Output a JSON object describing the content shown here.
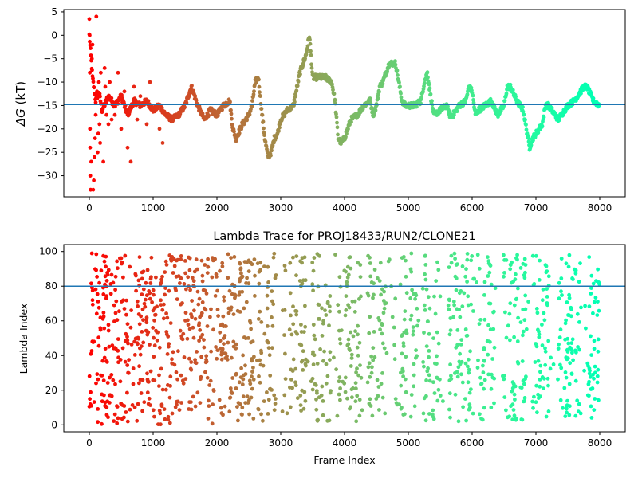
{
  "chart_data": [
    {
      "type": "scatter",
      "title": "",
      "xlabel": "",
      "ylabel": "ΔG (kT)",
      "ylabel_symbol": "ΔG",
      "ylabel_unit": " (kT)",
      "xlim": [
        -400,
        8400
      ],
      "ylim": [
        -34.5,
        5.5
      ],
      "xticks": [
        0,
        1000,
        2000,
        3000,
        4000,
        5000,
        6000,
        7000,
        8000
      ],
      "yticks": [
        5,
        0,
        -5,
        -10,
        -15,
        -20,
        -25,
        -30
      ],
      "grid": false,
      "colormap": "rainbow (red at frame 0 to violet at frame 8000)",
      "reference_line": {
        "y": -14.8,
        "color": "#1f77b4"
      },
      "series": [
        {
          "trace": [
            [
              0,
              0
            ],
            [
              50,
              -9
            ],
            [
              100,
              -14
            ],
            [
              150,
              -12
            ],
            [
              200,
              -16
            ],
            [
              300,
              -13
            ],
            [
              400,
              -15
            ],
            [
              500,
              -13
            ],
            [
              600,
              -17
            ],
            [
              700,
              -14
            ],
            [
              800,
              -15
            ],
            [
              900,
              -14
            ],
            [
              1000,
              -16
            ],
            [
              1100,
              -15
            ],
            [
              1200,
              -17
            ],
            [
              1300,
              -18
            ],
            [
              1400,
              -17
            ],
            [
              1500,
              -15
            ],
            [
              1600,
              -11
            ],
            [
              1700,
              -15
            ],
            [
              1800,
              -18
            ],
            [
              1900,
              -16
            ],
            [
              2000,
              -17
            ],
            [
              2100,
              -15
            ],
            [
              2200,
              -14
            ],
            [
              2250,
              -20
            ],
            [
              2300,
              -22
            ],
            [
              2400,
              -19
            ],
            [
              2500,
              -17
            ],
            [
              2550,
              -15
            ],
            [
              2600,
              -10
            ],
            [
              2650,
              -9
            ],
            [
              2700,
              -16
            ],
            [
              2750,
              -22
            ],
            [
              2800,
              -26
            ],
            [
              2850,
              -25
            ],
            [
              2900,
              -22
            ],
            [
              2950,
              -21
            ],
            [
              3000,
              -18
            ],
            [
              3050,
              -17
            ],
            [
              3100,
              -16
            ],
            [
              3200,
              -15
            ],
            [
              3300,
              -8
            ],
            [
              3400,
              -4
            ],
            [
              3450,
              0
            ],
            [
              3500,
              -9
            ],
            [
              3600,
              -9
            ],
            [
              3700,
              -9
            ],
            [
              3800,
              -10
            ],
            [
              3850,
              -14
            ],
            [
              3900,
              -22
            ],
            [
              3950,
              -23
            ],
            [
              4000,
              -22
            ],
            [
              4050,
              -20
            ],
            [
              4100,
              -18
            ],
            [
              4200,
              -17
            ],
            [
              4300,
              -15
            ],
            [
              4400,
              -14
            ],
            [
              4450,
              -17
            ],
            [
              4500,
              -15
            ],
            [
              4550,
              -11
            ],
            [
              4600,
              -10
            ],
            [
              4700,
              -6
            ],
            [
              4800,
              -6
            ],
            [
              4850,
              -10
            ],
            [
              4900,
              -14
            ],
            [
              4950,
              -15
            ],
            [
              5000,
              -15
            ],
            [
              5100,
              -15
            ],
            [
              5200,
              -14
            ],
            [
              5250,
              -10
            ],
            [
              5300,
              -8
            ],
            [
              5350,
              -13
            ],
            [
              5400,
              -17
            ],
            [
              5500,
              -16
            ],
            [
              5600,
              -15
            ],
            [
              5650,
              -17
            ],
            [
              5700,
              -17
            ],
            [
              5800,
              -15
            ],
            [
              5900,
              -14
            ],
            [
              5950,
              -11
            ],
            [
              6000,
              -12
            ],
            [
              6050,
              -17
            ],
            [
              6100,
              -16
            ],
            [
              6200,
              -15
            ],
            [
              6300,
              -14
            ],
            [
              6400,
              -17
            ],
            [
              6500,
              -15
            ],
            [
              6550,
              -11
            ],
            [
              6600,
              -11
            ],
            [
              6700,
              -14
            ],
            [
              6800,
              -16
            ],
            [
              6850,
              -20
            ],
            [
              6900,
              -24
            ],
            [
              6950,
              -22
            ],
            [
              7000,
              -21
            ],
            [
              7100,
              -19
            ],
            [
              7150,
              -15
            ],
            [
              7200,
              -15
            ],
            [
              7300,
              -17
            ],
            [
              7350,
              -18
            ],
            [
              7400,
              -17
            ],
            [
              7500,
              -15
            ],
            [
              7600,
              -14
            ],
            [
              7700,
              -12
            ],
            [
              7750,
              -11
            ],
            [
              7800,
              -11
            ],
            [
              7900,
              -14
            ],
            [
              8000,
              -15
            ]
          ],
          "early_scatter": [
            [
              0,
              3.5
            ],
            [
              5,
              0
            ],
            [
              8,
              -8
            ],
            [
              10,
              -20
            ],
            [
              12,
              -24
            ],
            [
              15,
              -30
            ],
            [
              20,
              -33
            ],
            [
              30,
              -27
            ],
            [
              40,
              -5
            ],
            [
              50,
              -2
            ],
            [
              60,
              -33
            ],
            [
              70,
              -31
            ],
            [
              80,
              -26
            ],
            [
              90,
              -22
            ],
            [
              100,
              -17
            ],
            [
              110,
              4
            ],
            [
              120,
              -12
            ],
            [
              130,
              -25
            ],
            [
              140,
              -21
            ],
            [
              150,
              -10
            ],
            [
              160,
              -19
            ],
            [
              170,
              -23
            ],
            [
              180,
              -8
            ],
            [
              200,
              -16
            ],
            [
              220,
              -27
            ],
            [
              240,
              -7
            ],
            [
              250,
              -11
            ],
            [
              270,
              -17
            ],
            [
              300,
              -19
            ],
            [
              320,
              -10
            ],
            [
              350,
              -18
            ],
            [
              400,
              -17
            ],
            [
              450,
              -8
            ],
            [
              500,
              -20
            ],
            [
              550,
              -12
            ],
            [
              600,
              -24
            ],
            [
              650,
              -27
            ],
            [
              700,
              -11
            ],
            [
              750,
              -18
            ],
            [
              800,
              -13
            ],
            [
              900,
              -19
            ],
            [
              950,
              -10
            ],
            [
              1100,
              -20
            ],
            [
              1150,
              -23
            ]
          ]
        }
      ]
    },
    {
      "type": "scatter",
      "title": "Lambda Trace for PROJ18433/RUN2/CLONE21",
      "xlabel": "Frame Index",
      "ylabel": "Lambda Index",
      "xlim": [
        -400,
        8400
      ],
      "ylim": [
        -4,
        104
      ],
      "xticks": [
        0,
        1000,
        2000,
        3000,
        4000,
        5000,
        6000,
        7000,
        8000
      ],
      "yticks": [
        0,
        20,
        40,
        60,
        80,
        100
      ],
      "grid": false,
      "colormap": "rainbow (red at frame 0 to violet at frame 8000)",
      "reference_line": {
        "y": 80,
        "color": "#1f77b4"
      },
      "points": "dense scatter of lambda index 0–99 versus frame index 0–8000; early frames fill the whole range, later frames form vertical sweeps between about 2 and 99"
    }
  ]
}
